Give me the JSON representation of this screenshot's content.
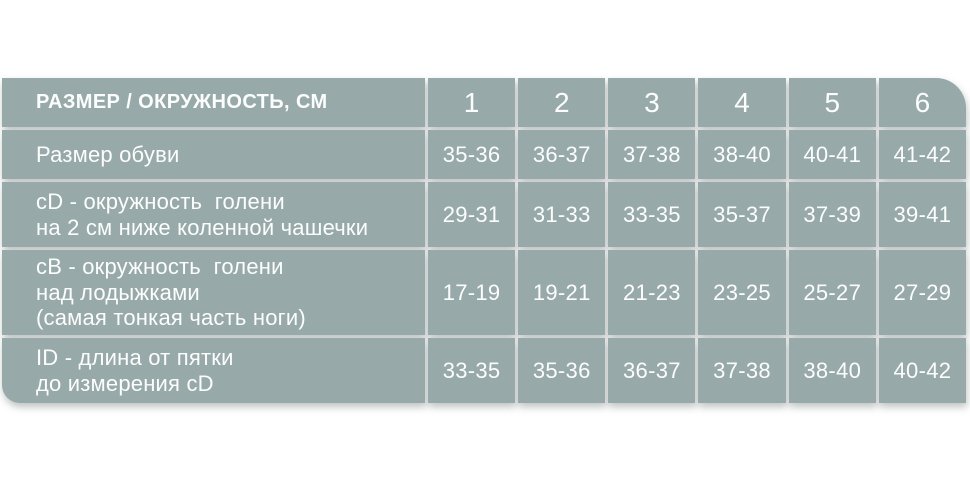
{
  "chart_data": {
    "type": "table",
    "title": "РАЗМЕР / ОКРУЖНОСТЬ, СМ",
    "columns": [
      "1",
      "2",
      "3",
      "4",
      "5",
      "6"
    ],
    "rows": [
      {
        "label": "Размер обуви",
        "values": [
          "35-36",
          "36-37",
          "37-38",
          "38-40",
          "40-41",
          "41-42"
        ]
      },
      {
        "label": "cD - окружность  голени\nна 2 см ниже коленной чашечки",
        "values": [
          "29-31",
          "31-33",
          "33-35",
          "35-37",
          "37-39",
          "39-41"
        ]
      },
      {
        "label": "cB - окружность  голени\nнад лодыжками\n(самая тонкая часть ноги)",
        "values": [
          "17-19",
          "19-21",
          "21-23",
          "23-25",
          "25-27",
          "27-29"
        ]
      },
      {
        "label": "ID - длина от пятки\nдо измерения cD",
        "values": [
          "33-35",
          "35-36",
          "36-37",
          "37-38",
          "38-40",
          "40-42"
        ]
      }
    ]
  },
  "colors": {
    "cell_bg": "#98a9a9",
    "text": "#fcfdfd",
    "separator": "#ffffff"
  }
}
